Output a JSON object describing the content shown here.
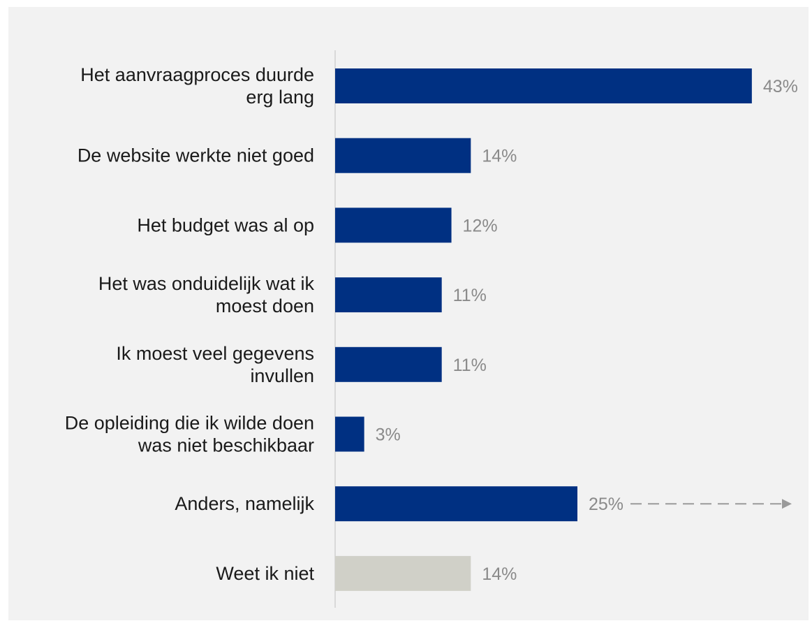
{
  "chart_data": {
    "type": "bar",
    "orientation": "horizontal",
    "categories": [
      [
        "Het aanvraagproces duurde",
        "erg lang"
      ],
      [
        "De website werkte niet goed"
      ],
      [
        "Het budget was al op"
      ],
      [
        "Het was onduidelijk wat ik",
        "moest doen"
      ],
      [
        "Ik moest veel gegevens",
        "invullen"
      ],
      [
        "De opleiding die ik wilde doen",
        "was niet beschikbaar"
      ],
      [
        "Anders, namelijk"
      ],
      [
        "Weet ik niet"
      ]
    ],
    "values": [
      43,
      14,
      12,
      11,
      11,
      3,
      25,
      14
    ],
    "value_labels": [
      "43%",
      "14%",
      "12%",
      "11%",
      "11%",
      "3%",
      "25%",
      "14%"
    ],
    "bar_colors": [
      "#003082",
      "#003082",
      "#003082",
      "#003082",
      "#003082",
      "#003082",
      "#003082",
      "#d0d0c8"
    ],
    "xlim": [
      0,
      45
    ],
    "grid": false,
    "title": "",
    "xlabel": "",
    "ylabel": "",
    "annotations": [
      {
        "type": "dashed-arrow",
        "category_index": 6,
        "color": "#9a9a9a"
      }
    ]
  }
}
